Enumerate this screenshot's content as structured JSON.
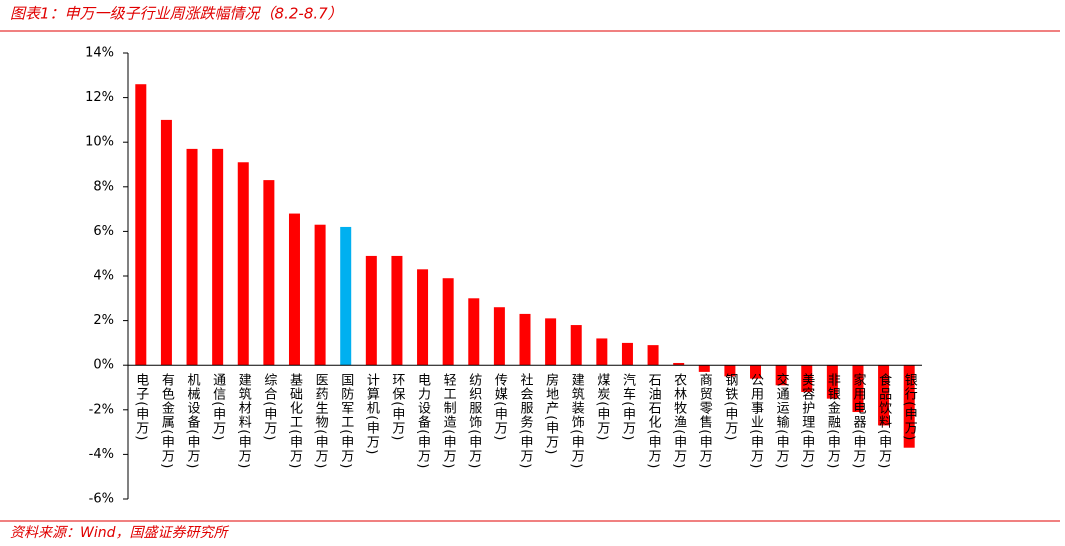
{
  "chart_data": {
    "type": "bar",
    "title": "图表1：申万一级子行业周涨跌幅情况（8.2-8.7）",
    "source": "资料来源：Wind，国盛证券研究所",
    "categories": [
      "电子(申万)",
      "有色金属(申万)",
      "机械设备(申万)",
      "通信(申万)",
      "建筑材料(申万)",
      "综合(申万)",
      "基础化工(申万)",
      "医药生物(申万)",
      "国防军工(申万)",
      "计算机(申万)",
      "环保(申万)",
      "电力设备(申万)",
      "轻工制造(申万)",
      "纺织服饰(申万)",
      "传媒(申万)",
      "社会服务(申万)",
      "房地产(申万)",
      "建筑装饰(申万)",
      "煤炭(申万)",
      "汽车(申万)",
      "石油石化(申万)",
      "农林牧渔(申万)",
      "商贸零售(申万)",
      "钢铁(申万)",
      "公用事业(申万)",
      "交通运输(申万)",
      "美容护理(申万)",
      "非银金融(申万)",
      "家用电器(申万)",
      "食品饮料(申万)",
      "银行(申万)"
    ],
    "series": [
      {
        "values": [
          12.6,
          11.0,
          9.7,
          9.7,
          9.1,
          8.3,
          6.8,
          6.3,
          6.2,
          4.9,
          4.9,
          4.3,
          3.9,
          3.0,
          2.6,
          2.3,
          2.1,
          1.8,
          1.2,
          1.0,
          0.9,
          0.1,
          -0.3,
          -0.5,
          -0.6,
          -0.9,
          -1.2,
          -1.5,
          -2.1,
          -2.7,
          -3.7
        ],
        "colors": [
          "#ff0000",
          "#ff0000",
          "#ff0000",
          "#ff0000",
          "#ff0000",
          "#ff0000",
          "#ff0000",
          "#ff0000",
          "#00b0f0",
          "#ff0000",
          "#ff0000",
          "#ff0000",
          "#ff0000",
          "#ff0000",
          "#ff0000",
          "#ff0000",
          "#ff0000",
          "#ff0000",
          "#ff0000",
          "#ff0000",
          "#ff0000",
          "#ff0000",
          "#ff0000",
          "#ff0000",
          "#ff0000",
          "#ff0000",
          "#ff0000",
          "#ff0000",
          "#ff0000",
          "#ff0000",
          "#ff0000"
        ]
      }
    ],
    "ylim": [
      -6,
      14
    ],
    "yticks": [
      {
        "value": -6,
        "label": "-6%"
      },
      {
        "value": -4,
        "label": "-4%"
      },
      {
        "value": -2,
        "label": "-2%"
      },
      {
        "value": 0,
        "label": "0%"
      },
      {
        "value": 2,
        "label": "2%"
      },
      {
        "value": 4,
        "label": "4%"
      },
      {
        "value": 6,
        "label": "6%"
      },
      {
        "value": 8,
        "label": "8%"
      },
      {
        "value": 10,
        "label": "10%"
      },
      {
        "value": 12,
        "label": "12%"
      },
      {
        "value": 14,
        "label": "14%"
      }
    ],
    "grid": false
  }
}
